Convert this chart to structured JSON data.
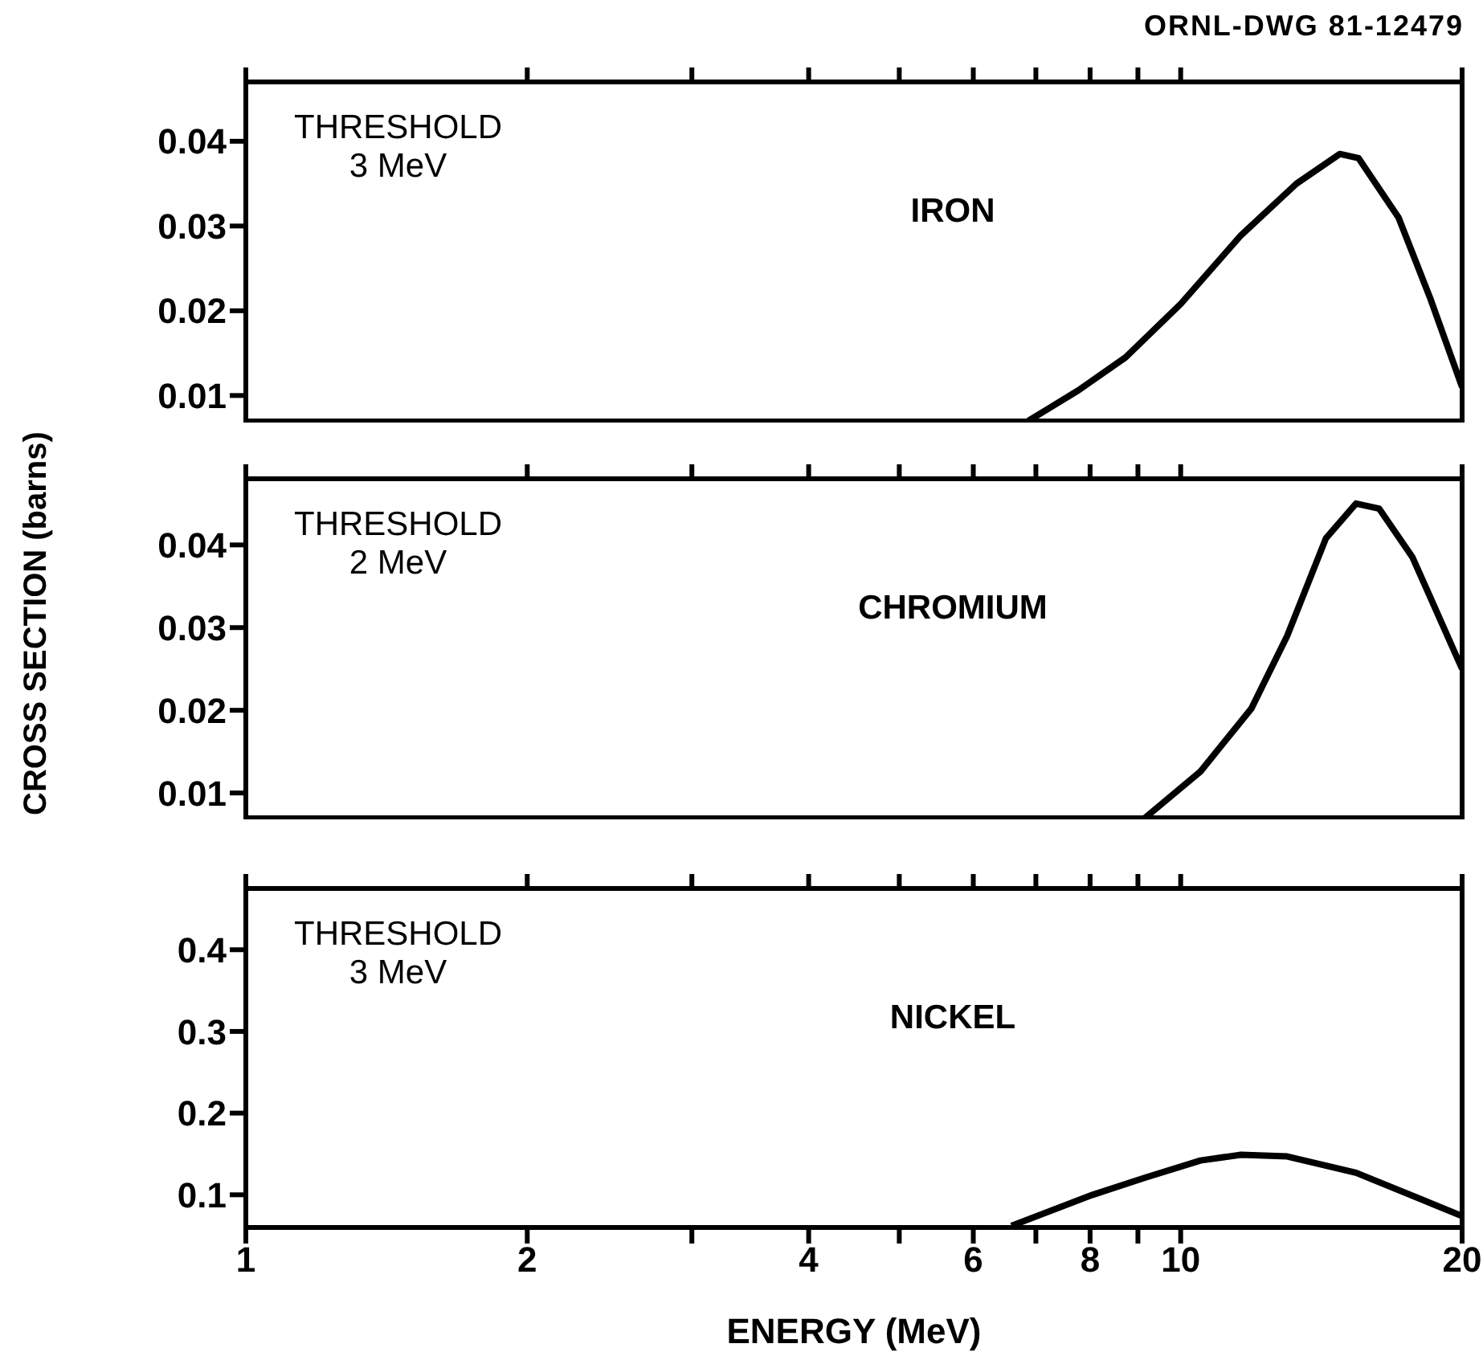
{
  "chart_data": [
    {
      "type": "line",
      "annotations": [
        "ORNL-DWG 81-12479",
        "THRESHOLD",
        "3 MeV",
        "IRON"
      ],
      "log": "x",
      "marker": "none",
      "line_style": "solid",
      "tick_labels": "y",
      "x": [
        6.87,
        7.77,
        8.73,
        10.0,
        11.6,
        13.3,
        14.8,
        15.5,
        17.1,
        18.5,
        20
      ],
      "series": [
        {
          "color": "#000000",
          "values": [
            0.007,
            0.0106,
            0.0145,
            0.0208,
            0.0289,
            0.035,
            0.0385,
            0.038,
            0.031,
            0.0214,
            0.011
          ]
        }
      ],
      "xlim": [
        1,
        20
      ],
      "xticks": [
        1,
        {
          "value": 2,
          "label": null
        },
        {
          "value": 3,
          "label": null
        },
        {
          "value": 4,
          "label": null
        },
        {
          "value": 5,
          "label": null
        },
        {
          "value": 6,
          "label": null
        },
        {
          "value": 7,
          "label": null
        },
        {
          "value": 8,
          "label": null
        },
        {
          "value": 9,
          "label": null
        },
        {
          "value": 10,
          "label": null
        },
        {
          "value": 20,
          "label": null
        }
      ],
      "ylim": [
        0.007,
        0.047
      ],
      "yticks": [
        {
          "value": 0.01,
          "label": "0.01"
        },
        {
          "value": 0.02,
          "label": "0.02"
        },
        {
          "value": 0.03,
          "label": "0.03"
        },
        {
          "value": 0.04,
          "label": "0.04"
        }
      ]
    },
    {
      "type": "line",
      "ylabel": "CROSS SECTION (barns)",
      "annotations": [
        "THRESHOLD",
        "2 MeV",
        "CHROMIUM"
      ],
      "log": "x",
      "marker": "none",
      "line_style": "solid",
      "tick_labels": "y",
      "x": [
        9.16,
        10.5,
        11.9,
        13.0,
        14.3,
        15.4,
        16.3,
        17.7,
        20
      ],
      "series": [
        {
          "color": "#000000",
          "values": [
            0.007,
            0.0126,
            0.0202,
            0.029,
            0.0408,
            0.045,
            0.0444,
            0.0385,
            0.025
          ]
        }
      ],
      "xlim": [
        1,
        20
      ],
      "xticks": [
        1,
        {
          "value": 2,
          "label": null
        },
        {
          "value": 3,
          "label": null
        },
        {
          "value": 4,
          "label": null
        },
        {
          "value": 5,
          "label": null
        },
        {
          "value": 6,
          "label": null
        },
        {
          "value": 7,
          "label": null
        },
        {
          "value": 8,
          "label": null
        },
        {
          "value": 9,
          "label": null
        },
        {
          "value": 10,
          "label": null
        },
        {
          "value": 20,
          "label": null
        }
      ],
      "ylim": [
        0.007,
        0.048
      ],
      "yticks": [
        {
          "value": 0.01,
          "label": "0.01"
        },
        {
          "value": 0.02,
          "label": "0.02"
        },
        {
          "value": 0.03,
          "label": "0.03"
        },
        {
          "value": 0.04,
          "label": "0.04"
        }
      ]
    },
    {
      "type": "line",
      "xlabel": "ENERGY (MeV)",
      "annotations": [
        "THRESHOLD",
        "3 MeV",
        "NICKEL"
      ],
      "log": "x",
      "marker": "none",
      "line_style": "solid",
      "x": [
        6.59,
        8.05,
        9.16,
        10.5,
        11.6,
        13.0,
        15.4,
        20
      ],
      "series": [
        {
          "color": "#000000",
          "values": [
            0.062,
            0.1,
            0.121,
            0.142,
            0.149,
            0.147,
            0.127,
            0.074
          ]
        }
      ],
      "xlim": [
        1,
        20
      ],
      "xticks": [
        1,
        2,
        {
          "value": 3,
          "label": null
        },
        4,
        {
          "value": 5,
          "label": null
        },
        6,
        {
          "value": 7,
          "label": null
        },
        8,
        {
          "value": 9,
          "label": null
        },
        10,
        20
      ],
      "ylim": [
        0.06,
        0.475
      ],
      "yticks": [
        {
          "value": 0.1,
          "label": "0.1"
        },
        {
          "value": 0.2,
          "label": "0.2"
        },
        {
          "value": 0.3,
          "label": "0.3"
        },
        {
          "value": 0.4,
          "label": "0.4"
        }
      ]
    }
  ]
}
